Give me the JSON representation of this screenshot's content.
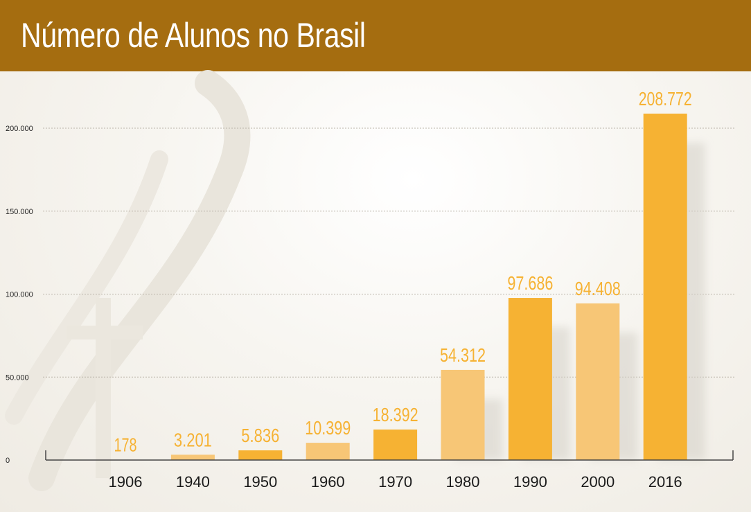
{
  "header": {
    "title": "Número de Alunos no Brasil"
  },
  "colors": {
    "header_bg": "#a56d10",
    "bar_dark": "#f6b233",
    "bar_light": "#f7c676",
    "value_label": "#f6b233",
    "gridline": "#b9b3a8",
    "axis": "#444444"
  },
  "chart_data": {
    "type": "bar",
    "title": "Número de Alunos no Brasil",
    "xlabel": "",
    "ylabel": "",
    "categories": [
      "1906",
      "1940",
      "1950",
      "1960",
      "1970",
      "1980",
      "1990",
      "2000",
      "2016"
    ],
    "values": [
      178,
      3201,
      5836,
      10399,
      18392,
      54312,
      97686,
      94408,
      208772
    ],
    "value_labels": [
      "178",
      "3.201",
      "5.836",
      "10.399",
      "18.392",
      "54.312",
      "97.686",
      "94.408",
      "208.772"
    ],
    "bar_tones": [
      "light",
      "light",
      "dark",
      "light",
      "dark",
      "light",
      "dark",
      "light",
      "dark"
    ],
    "yticks": [
      0,
      50000,
      100000,
      150000,
      200000
    ],
    "ytick_labels": [
      "0",
      "50.000",
      "100.000",
      "150.000",
      "200.000"
    ],
    "ylim": [
      0,
      200000
    ],
    "grid": true,
    "legend": "none"
  }
}
